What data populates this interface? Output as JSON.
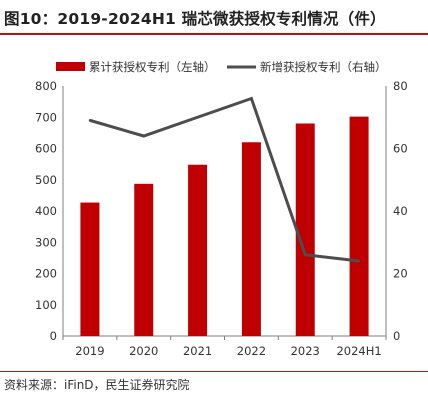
{
  "figure": {
    "title": "图10：2019-2024H1 瑞芯微获授权专利情况（件）",
    "source": "资料来源：iFinD，民生证券研究院"
  },
  "chart_data": {
    "type": "bar+line",
    "categories": [
      "2019",
      "2020",
      "2021",
      "2022",
      "2023",
      "2024H1"
    ],
    "series": [
      {
        "name": "累计获授权专利（左轴）",
        "type": "bar",
        "axis": "left",
        "values": [
          427,
          487,
          548,
          620,
          680,
          702
        ],
        "color": "#c00000"
      },
      {
        "name": "新增获授权专利（右轴）",
        "type": "line",
        "axis": "right",
        "values": [
          69,
          64,
          70,
          76,
          26,
          24
        ],
        "color": "#4d4d4d"
      }
    ],
    "y_left": {
      "min": 0,
      "max": 800,
      "ticks": [
        0,
        100,
        200,
        300,
        400,
        500,
        600,
        700,
        800
      ]
    },
    "y_right": {
      "min": 0,
      "max": 80,
      "ticks": [
        0,
        20,
        40,
        60,
        80
      ]
    },
    "legend_position": "top",
    "grid": false
  }
}
